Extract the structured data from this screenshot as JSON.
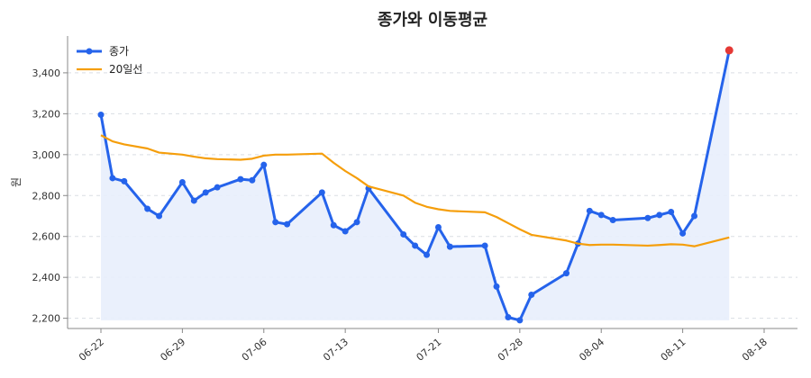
{
  "chart_data": {
    "type": "line",
    "title": "종가와 이동평균",
    "xlabel": "",
    "ylabel": "원",
    "ylim": [
      2150,
      3580
    ],
    "yticks": [
      2200,
      2400,
      2600,
      2800,
      3000,
      3200,
      3400
    ],
    "ytick_labels": [
      "2,200",
      "2,400",
      "2,600",
      "2,800",
      "3,000",
      "3,200",
      "3,400"
    ],
    "grid": "y-dashed",
    "legend_position": "top-left",
    "x": [
      "06-22",
      "06-23",
      "06-24",
      "06-25",
      "06-26",
      "06-27",
      "06-28",
      "06-29",
      "06-30",
      "07-01",
      "07-02",
      "07-03",
      "07-04",
      "07-05",
      "07-06",
      "07-07",
      "07-08",
      "07-09",
      "07-10",
      "07-11",
      "07-12",
      "07-13",
      "07-14",
      "07-15",
      "07-16",
      "07-17",
      "07-18",
      "07-19",
      "07-20",
      "07-21",
      "07-22",
      "07-23",
      "07-24",
      "07-25",
      "07-26",
      "07-27",
      "07-28",
      "07-29",
      "07-30",
      "07-31",
      "08-01",
      "08-02",
      "08-03",
      "08-04",
      "08-05",
      "08-06",
      "08-07",
      "08-08",
      "08-09",
      "08-10",
      "08-11",
      "08-12",
      "08-13",
      "08-14",
      "08-15",
      "08-16",
      "08-17",
      "08-18"
    ],
    "xticks": [
      "06-22",
      "06-29",
      "07-06",
      "07-13",
      "07-21",
      "07-28",
      "08-04",
      "08-11",
      "08-18"
    ],
    "series": [
      {
        "name": "종가",
        "color": "#2563eb",
        "marker": true,
        "fill": "#e8eefc",
        "points": [
          [
            "06-22",
            3195
          ],
          [
            "06-23",
            2885
          ],
          [
            "06-24",
            2870
          ],
          [
            "06-26",
            2735
          ],
          [
            "06-27",
            2700
          ],
          [
            "06-29",
            2865
          ],
          [
            "06-30",
            2775
          ],
          [
            "07-01",
            2815
          ],
          [
            "07-02",
            2840
          ],
          [
            "07-04",
            2880
          ],
          [
            "07-05",
            2875
          ],
          [
            "07-06",
            2950
          ],
          [
            "07-07",
            2670
          ],
          [
            "07-08",
            2660
          ],
          [
            "07-11",
            2815
          ],
          [
            "07-12",
            2655
          ],
          [
            "07-13",
            2625
          ],
          [
            "07-14",
            2670
          ],
          [
            "07-15",
            2835
          ],
          [
            "07-18",
            2610
          ],
          [
            "07-19",
            2555
          ],
          [
            "07-20",
            2510
          ],
          [
            "07-21",
            2645
          ],
          [
            "07-22",
            2550
          ],
          [
            "07-25",
            2555
          ],
          [
            "07-26",
            2355
          ],
          [
            "07-27",
            2205
          ],
          [
            "07-28",
            2190
          ],
          [
            "07-29",
            2315
          ],
          [
            "08-01",
            2420
          ],
          [
            "08-02",
            2565
          ],
          [
            "08-03",
            2725
          ],
          [
            "08-04",
            2705
          ],
          [
            "08-05",
            2680
          ],
          [
            "08-08",
            2690
          ],
          [
            "08-09",
            2705
          ],
          [
            "08-10",
            2720
          ],
          [
            "08-11",
            2615
          ],
          [
            "08-12",
            2700
          ],
          [
            "08-15",
            3510
          ]
        ],
        "last_point_color": "#e53935"
      },
      {
        "name": "20일선",
        "color": "#f59e0b",
        "marker": false,
        "points": [
          [
            "06-22",
            3095
          ],
          [
            "06-23",
            3065
          ],
          [
            "06-24",
            3050
          ],
          [
            "06-26",
            3030
          ],
          [
            "06-27",
            3010
          ],
          [
            "06-29",
            3000
          ],
          [
            "06-30",
            2990
          ],
          [
            "07-01",
            2982
          ],
          [
            "07-02",
            2978
          ],
          [
            "07-04",
            2975
          ],
          [
            "07-05",
            2980
          ],
          [
            "07-06",
            2995
          ],
          [
            "07-07",
            3000
          ],
          [
            "07-08",
            3000
          ],
          [
            "07-11",
            3005
          ],
          [
            "07-12",
            2960
          ],
          [
            "07-13",
            2920
          ],
          [
            "07-14",
            2885
          ],
          [
            "07-15",
            2845
          ],
          [
            "07-18",
            2800
          ],
          [
            "07-19",
            2765
          ],
          [
            "07-20",
            2745
          ],
          [
            "07-21",
            2733
          ],
          [
            "07-22",
            2725
          ],
          [
            "07-25",
            2718
          ],
          [
            "07-26",
            2695
          ],
          [
            "07-27",
            2665
          ],
          [
            "07-28",
            2635
          ],
          [
            "07-29",
            2608
          ],
          [
            "08-01",
            2580
          ],
          [
            "08-02",
            2565
          ],
          [
            "08-03",
            2558
          ],
          [
            "08-04",
            2560
          ],
          [
            "08-05",
            2560
          ],
          [
            "08-08",
            2555
          ],
          [
            "08-09",
            2558
          ],
          [
            "08-10",
            2562
          ],
          [
            "08-11",
            2560
          ],
          [
            "08-12",
            2552
          ],
          [
            "08-15",
            2595
          ]
        ]
      }
    ]
  }
}
